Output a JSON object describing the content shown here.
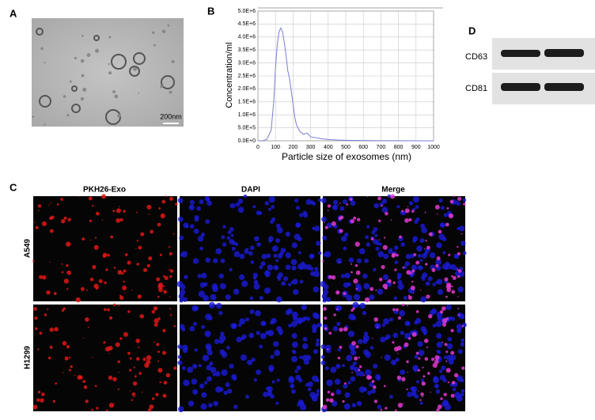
{
  "panel_a": {
    "label": "A",
    "scale_bar": "200nm"
  },
  "chart_data": {
    "type": "line",
    "panel_label": "B",
    "x_label": "Particle size of exosomes (nm)",
    "y_label": "Concentration/ml",
    "x": [
      0,
      25,
      50,
      75,
      90,
      100,
      110,
      120,
      130,
      140,
      150,
      160,
      170,
      180,
      190,
      200,
      210,
      220,
      240,
      260,
      280,
      300,
      330,
      360,
      400,
      450,
      500,
      600,
      700,
      800,
      900,
      1000
    ],
    "series": [
      {
        "color": "#7b7bd8",
        "values": [
          0,
          0,
          50000,
          400000,
          1500000,
          2800000,
          3700000,
          4200000,
          4350000,
          4200000,
          3800000,
          3300000,
          2700000,
          2400000,
          1900000,
          1400000,
          900000,
          600000,
          350000,
          250000,
          300000,
          150000,
          120000,
          80000,
          50000,
          30000,
          20000,
          10000,
          5000,
          5000,
          0,
          0
        ]
      }
    ],
    "xlim": [
      0,
      1000
    ],
    "xticks": [
      0,
      100,
      200,
      300,
      400,
      500,
      600,
      700,
      800,
      900,
      1000
    ],
    "ylim": [
      0,
      5000000
    ],
    "yticks": [
      {
        "value": 0,
        "label": "0.0E+0"
      },
      {
        "value": 500000,
        "label": "5.0E+5"
      },
      {
        "value": 1000000,
        "label": "1.0E+6"
      },
      {
        "value": 1500000,
        "label": "1.5E+6"
      },
      {
        "value": 2000000,
        "label": "2.0E+6"
      },
      {
        "value": 2500000,
        "label": "2.5E+6"
      },
      {
        "value": 3000000,
        "label": "3.0E+6"
      },
      {
        "value": 3500000,
        "label": "3.5E+6"
      },
      {
        "value": 4000000,
        "label": "4.0E+6"
      },
      {
        "value": 4500000,
        "label": "4.5E+6"
      },
      {
        "value": 5000000,
        "label": "5.0E+6"
      }
    ],
    "grid": true
  },
  "panel_c": {
    "label": "C",
    "columns": [
      "PKH26-Exo",
      "DAPI",
      "Merge"
    ],
    "rows": [
      "A549",
      "H1299"
    ]
  },
  "panel_d": {
    "label": "D",
    "bands": [
      "CD63",
      "CD81"
    ]
  }
}
